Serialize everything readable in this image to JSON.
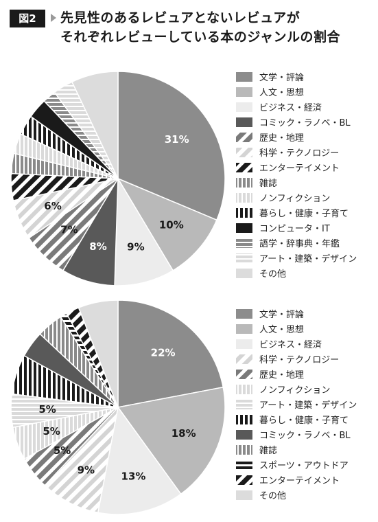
{
  "figure": {
    "badge": "図2",
    "title_line1": "先見性のあるレビュアとないレビュアが",
    "title_line2": "それぞれレビューしている本のジャンルの割合"
  },
  "chart_data": [
    {
      "type": "pie",
      "slices": [
        {
          "label": "文学・評論",
          "value": 31,
          "pattern": "solid-gray",
          "shown_label": "31%"
        },
        {
          "label": "人文・思想",
          "value": 10,
          "pattern": "light-gray",
          "shown_label": "10%"
        },
        {
          "label": "ビジネス・経済",
          "value": 9,
          "pattern": "very-light",
          "shown_label": "9%"
        },
        {
          "label": "コミック・ラノベ・BL",
          "value": 8,
          "pattern": "dark-gray",
          "shown_label": "8%"
        },
        {
          "label": "歴史・地理",
          "value": 7,
          "pattern": "diag-gray",
          "shown_label": "7%"
        },
        {
          "label": "科学・テクノロジー",
          "value": 6,
          "pattern": "diag-light",
          "shown_label": "6%"
        },
        {
          "label": "エンターテイメント",
          "value": 4,
          "pattern": "diag-black",
          "shown_label": ""
        },
        {
          "label": "雑誌",
          "value": 3,
          "pattern": "vstripe-gray",
          "shown_label": ""
        },
        {
          "label": "ノンフィクション",
          "value": 3,
          "pattern": "vstripe-light",
          "shown_label": ""
        },
        {
          "label": "暮らし・健康・子育て",
          "value": 3,
          "pattern": "vstripe-black",
          "shown_label": ""
        },
        {
          "label": "コンピュータ・IT",
          "value": 3,
          "pattern": "solid-black",
          "shown_label": ""
        },
        {
          "label": "語学・辞事典・年鑑",
          "value": 2,
          "pattern": "hstripe-gray",
          "shown_label": ""
        },
        {
          "label": "アート・建築・デザイン",
          "value": 3,
          "pattern": "hstripe-light",
          "shown_label": ""
        },
        {
          "label": "その他",
          "value": 7,
          "pattern": "pale-gray",
          "shown_label": ""
        }
      ]
    },
    {
      "type": "pie",
      "slices": [
        {
          "label": "文学・評論",
          "value": 22,
          "pattern": "solid-gray",
          "shown_label": "22%"
        },
        {
          "label": "人文・思想",
          "value": 18,
          "pattern": "light-gray",
          "shown_label": "18%"
        },
        {
          "label": "ビジネス・経済",
          "value": 13,
          "pattern": "very-light",
          "shown_label": "13%"
        },
        {
          "label": "科学・テクノロジー",
          "value": 9,
          "pattern": "diag-light",
          "shown_label": "9%"
        },
        {
          "label": "歴史・地理",
          "value": 5,
          "pattern": "diag-gray",
          "shown_label": "5%"
        },
        {
          "label": "ノンフィクション",
          "value": 5,
          "pattern": "vstripe-light",
          "shown_label": "5%"
        },
        {
          "label": "アート・建築・デザイン",
          "value": 5,
          "pattern": "hstripe-light",
          "shown_label": "5%"
        },
        {
          "label": "暮らし・健康・子育て",
          "value": 6,
          "pattern": "vstripe-black",
          "shown_label": ""
        },
        {
          "label": "コミック・ラノベ・BL",
          "value": 4,
          "pattern": "dark-gray",
          "shown_label": ""
        },
        {
          "label": "雑誌",
          "value": 4,
          "pattern": "vstripe-gray",
          "shown_label": ""
        },
        {
          "label": "スポーツ・アウトドア",
          "value": 1,
          "pattern": "hstripe-black",
          "shown_label": ""
        },
        {
          "label": "エンターテイメント",
          "value": 2,
          "pattern": "diag-black",
          "shown_label": ""
        },
        {
          "label": "その他",
          "value": 6,
          "pattern": "pale-gray",
          "shown_label": ""
        }
      ]
    }
  ],
  "colors": {
    "solid_gray": "#8c8c8c",
    "light_gray": "#b9b9b9",
    "very_light": "#ececec",
    "dark_gray": "#595959",
    "black": "#1a1a1a",
    "pale_gray": "#dcdcdc"
  }
}
